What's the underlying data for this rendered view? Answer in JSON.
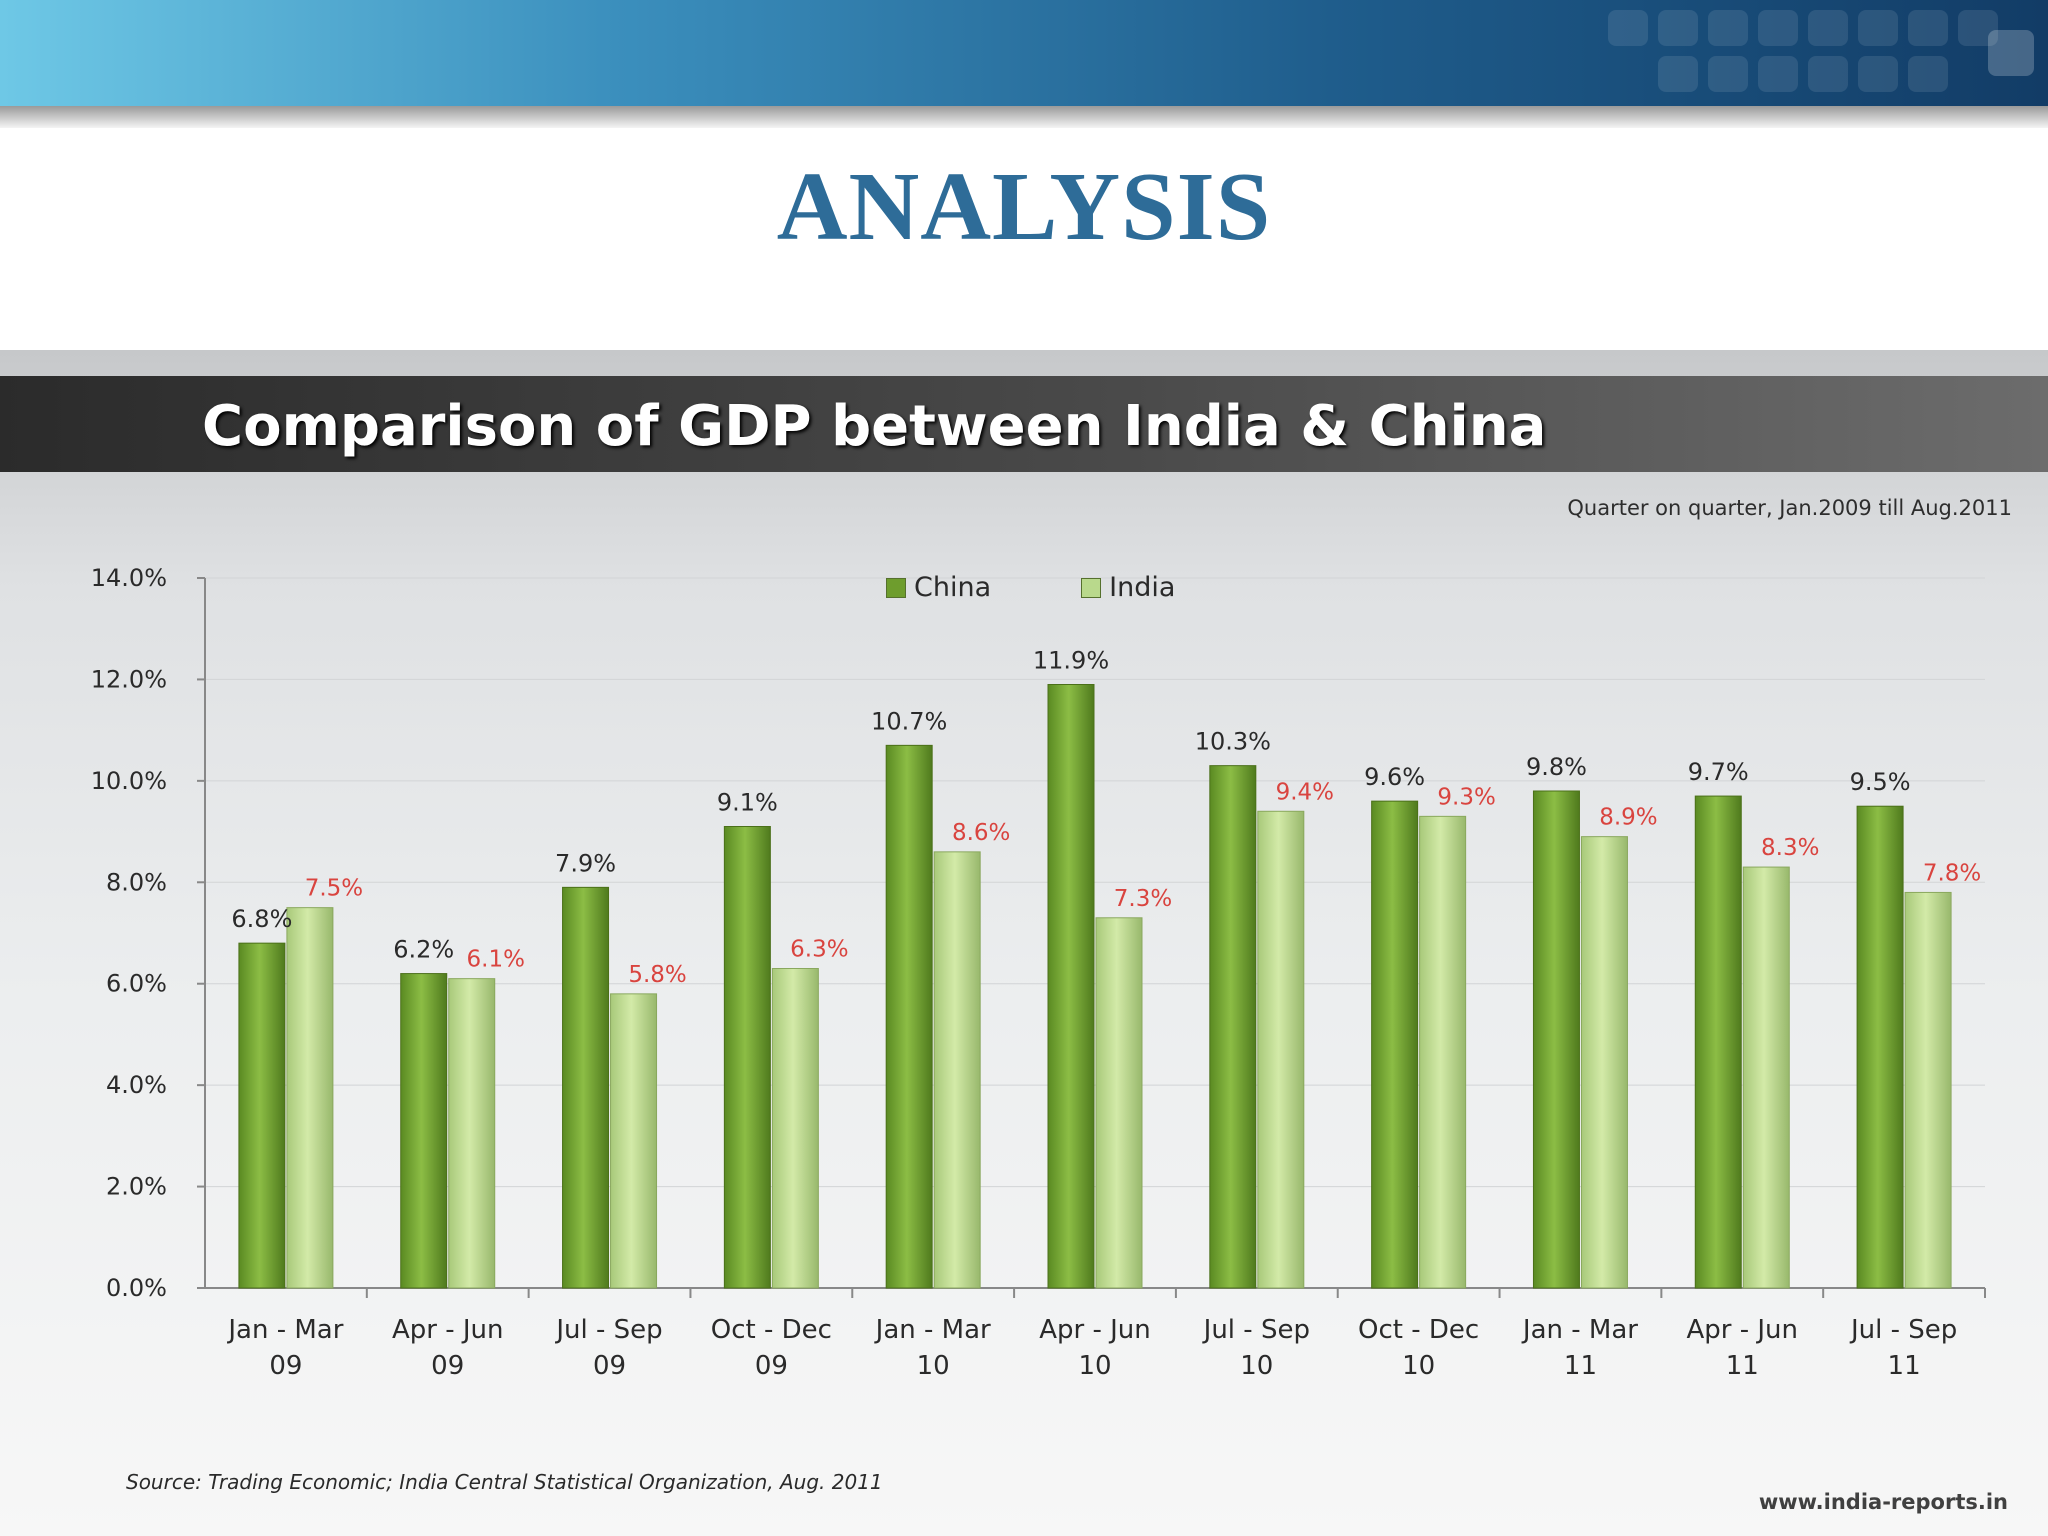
{
  "slide": {
    "heading": "ANALYSIS"
  },
  "colors": {
    "china": "#6e9d2d",
    "india": "#b9d98c",
    "india_label": "#d9443f",
    "heading": "#2e6c98"
  },
  "chart_data": {
    "type": "bar",
    "title": "Comparison of GDP between India & China",
    "subtitle": "Quarter on quarter, Jan.2009 till Aug.2011",
    "categories": [
      [
        "Jan - Mar",
        "09"
      ],
      [
        "Apr - Jun",
        "09"
      ],
      [
        "Jul - Sep",
        "09"
      ],
      [
        "Oct - Dec",
        "09"
      ],
      [
        "Jan - Mar",
        "10"
      ],
      [
        "Apr - Jun",
        "10"
      ],
      [
        "Jul - Sep",
        "10"
      ],
      [
        "Oct - Dec",
        "10"
      ],
      [
        "Jan - Mar",
        "11"
      ],
      [
        "Apr - Jun",
        "11"
      ],
      [
        "Jul - Sep",
        "11"
      ]
    ],
    "series": [
      {
        "name": "China",
        "values": [
          6.8,
          6.2,
          7.9,
          9.1,
          10.7,
          11.9,
          10.3,
          9.6,
          9.8,
          9.7,
          9.5
        ],
        "labels": [
          "6.8%",
          "6.2%",
          "7.9%",
          "9.1%",
          "10.7%",
          "11.9%",
          "10.3%",
          "9.6%",
          "9.8%",
          "9.7%",
          "9.5%"
        ]
      },
      {
        "name": "India",
        "values": [
          7.5,
          6.1,
          5.8,
          6.3,
          8.6,
          7.3,
          9.4,
          9.3,
          8.9,
          8.3,
          7.8
        ],
        "labels": [
          "7.5%",
          "6.1%",
          "5.8%",
          "6.3%",
          "8.6%",
          "7.3%",
          "9.4%",
          "9.3%",
          "8.9%",
          "8.3%",
          "7.8%"
        ]
      }
    ],
    "y_ticks": [
      "0.0%",
      "2.0%",
      "4.0%",
      "6.0%",
      "8.0%",
      "10.0%",
      "12.0%",
      "14.0%"
    ],
    "ylim": [
      0,
      14
    ],
    "legend": "top-center",
    "source": "Source: Trading Economic; India Central Statistical Organization, Aug. 2011",
    "website": "www.india-reports.in"
  }
}
